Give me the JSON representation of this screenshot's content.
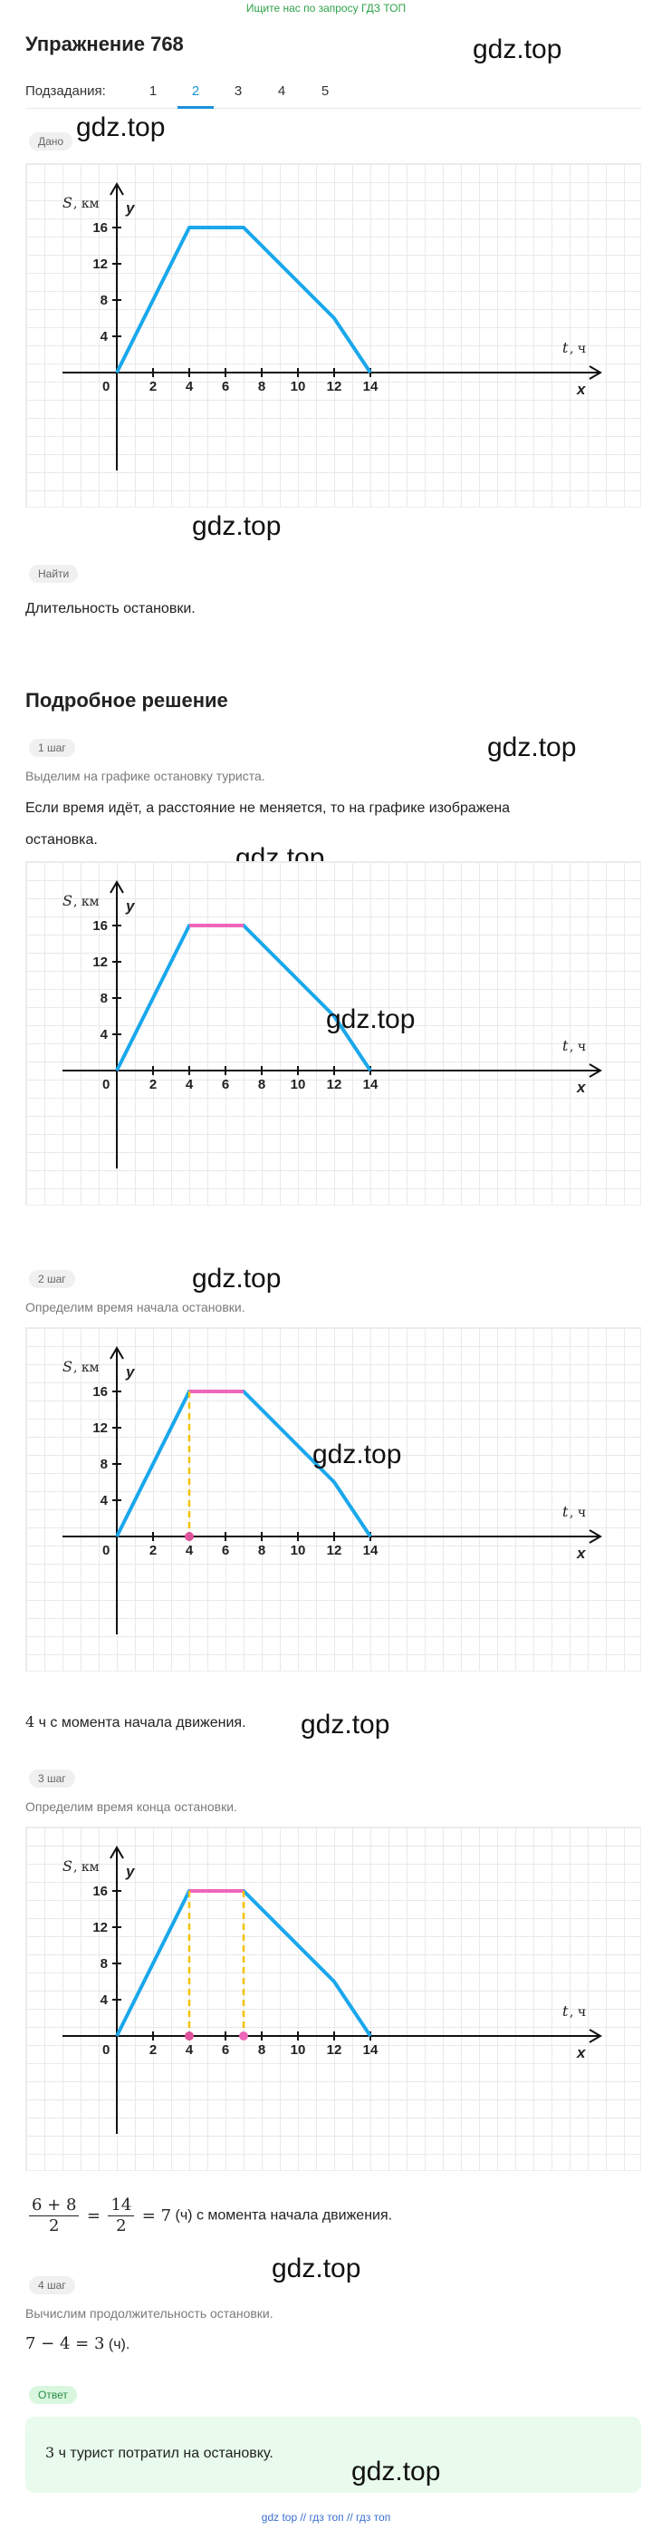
{
  "promo": "Ищите нас по запросу ГДЗ ТОП",
  "title": "Упражнение 768",
  "watermark": "gdz.top",
  "subtasks": {
    "label": "Подзадания:",
    "items": [
      "1",
      "2",
      "3",
      "4",
      "5"
    ],
    "active_index": 1
  },
  "given": {
    "badge": "Дано"
  },
  "find": {
    "badge": "Найти",
    "text": "Длительность остановки."
  },
  "solution": {
    "title": "Подробное решение",
    "steps": [
      {
        "badge": "1 шаг",
        "caption": "Выделим на графике остановку туриста.",
        "text_line1": "Если время идёт, а расстояние не меняется, то на графике изображена",
        "text_line2": "остановка."
      },
      {
        "badge": "2 шаг",
        "caption": "Определим время начала остановки.",
        "result_value": "4",
        "result_text": " ч с момента начала движения."
      },
      {
        "badge": "3 шаг",
        "caption": "Определим время конца остановки.",
        "frac1_num": "6 + 8",
        "frac1_den": "2",
        "eq": "=",
        "frac2_num": "14",
        "frac2_den": "2",
        "result_eq": "= 7",
        "result_text": " (ч) с момента начала движения."
      },
      {
        "badge": "4 шаг",
        "caption": "Вычислим продолжительность остановки.",
        "formula": "7 − 4 = 3",
        "formula_suffix": " (ч)."
      }
    ]
  },
  "answer": {
    "badge": "Ответ",
    "value": "3",
    "text": " ч турист потратил на остановку."
  },
  "footer": "gdz top // гдз топ // гдз топ",
  "chart_data": {
    "type": "line",
    "ylabel_math": "S",
    "ylabel_unit": ", км",
    "y_axis_letter": "y",
    "xlabel_math": "t",
    "xlabel_unit": ", ч",
    "x_axis_letter": "x",
    "origin_label": "0",
    "x_ticks": [
      2,
      4,
      6,
      8,
      10,
      12,
      14
    ],
    "y_ticks": [
      4,
      8,
      12,
      16
    ],
    "points": [
      [
        0,
        0
      ],
      [
        4,
        16
      ],
      [
        7,
        16
      ],
      [
        12,
        6
      ],
      [
        14,
        0
      ]
    ],
    "stop_segment": [
      [
        4,
        16
      ],
      [
        7,
        16
      ]
    ],
    "colors": {
      "line": "#1aa7ec",
      "stop": "#ee66b8",
      "guide": "#f2c200",
      "marker": "#e0529c"
    }
  }
}
